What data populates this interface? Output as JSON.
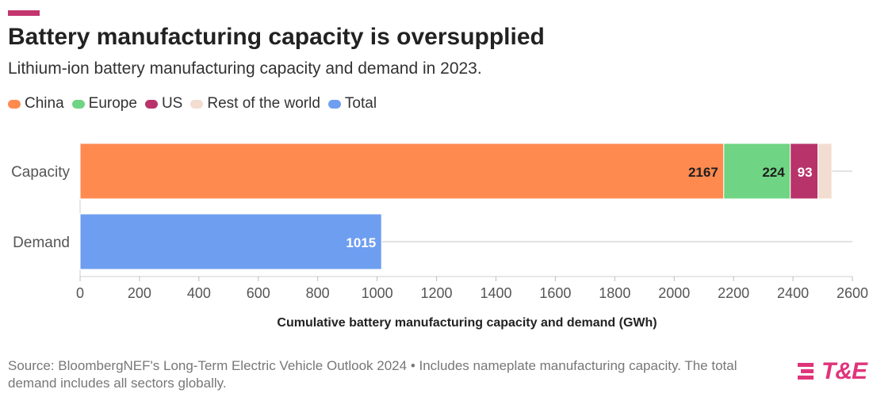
{
  "header": {
    "title": "Battery manufacturing capacity is oversupplied",
    "subtitle": "Lithium-ion battery manufacturing capacity and demand in 2023."
  },
  "colors": {
    "accent": "#c2366e",
    "china": "#ff8a50",
    "europe": "#6fd483",
    "us": "#b8336a",
    "rest": "#f2ddd0",
    "total": "#6e9ef0",
    "grid": "#e2e2e2",
    "logo": "#e0347a"
  },
  "legend": [
    {
      "label": "China",
      "color": "#ff8a50"
    },
    {
      "label": "Europe",
      "color": "#6fd483"
    },
    {
      "label": "US",
      "color": "#b8336a"
    },
    {
      "label": "Rest of the world",
      "color": "#f2ddd0"
    },
    {
      "label": "Total",
      "color": "#6e9ef0"
    }
  ],
  "chart_data": {
    "type": "bar",
    "orientation": "horizontal",
    "stacked": true,
    "categories": [
      "Capacity",
      "Demand"
    ],
    "series": [
      {
        "name": "China",
        "values": [
          2167,
          null
        ],
        "labels": [
          "2167",
          ""
        ]
      },
      {
        "name": "Europe",
        "values": [
          224,
          null
        ],
        "labels": [
          "224",
          ""
        ]
      },
      {
        "name": "US",
        "values": [
          93,
          null
        ],
        "labels": [
          "93",
          ""
        ]
      },
      {
        "name": "Rest of the world",
        "values": [
          47,
          null
        ],
        "labels": [
          "",
          ""
        ]
      },
      {
        "name": "Total",
        "values": [
          null,
          1015
        ],
        "labels": [
          "",
          "1015"
        ]
      }
    ],
    "xlabel": "Cumulative battery manufacturing capacity and demand (GWh)",
    "xlim": [
      0,
      2600
    ],
    "xticks": [
      0,
      200,
      400,
      600,
      800,
      1000,
      1200,
      1400,
      1600,
      1800,
      2000,
      2200,
      2400,
      2600
    ],
    "grid": true,
    "legend_position": "top-left"
  },
  "footer": {
    "source": "Source: BloombergNEF's Long-Term Electric Vehicle Outlook 2024 • Includes nameplate manufacturing capacity. The total demand includes all sectors globally.",
    "logo_text": "T&E"
  }
}
